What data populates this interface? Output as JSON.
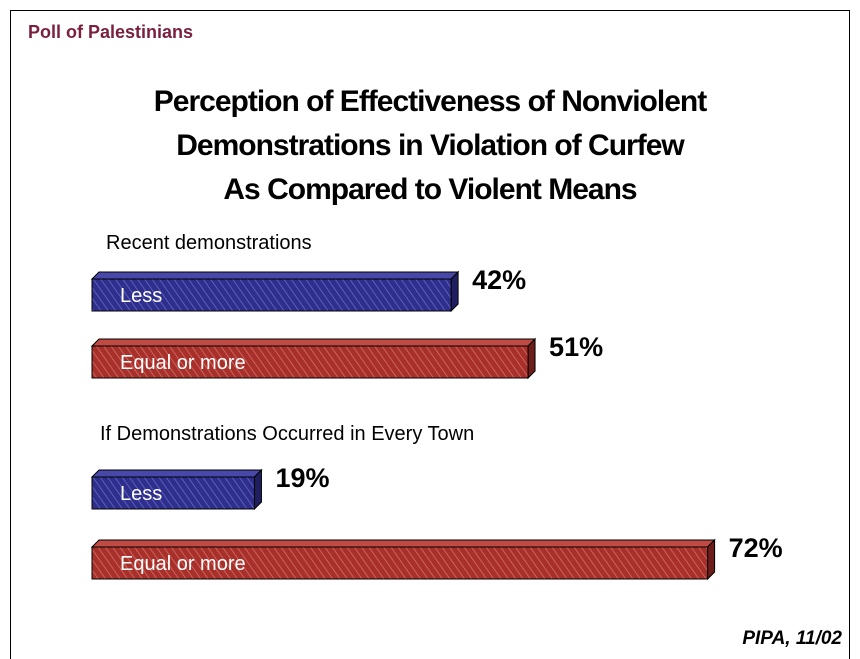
{
  "header": "Poll of Palestinians",
  "title_lines": [
    "Perception of Effectiveness of Nonviolent",
    "Demonstrations in Violation of Curfew",
    "As Compared to Violent Means"
  ],
  "source": "PIPA, 11/02",
  "colors": {
    "less": "#2e2e8c",
    "equal": "#a8302a",
    "header": "#7a1f3d"
  },
  "chart_data": {
    "type": "bar",
    "orientation": "horizontal",
    "groups": [
      {
        "label": "Recent demonstrations",
        "bars": [
          {
            "category": "Less",
            "value": 42,
            "value_label": "42%"
          },
          {
            "category": "Equal or more",
            "value": 51,
            "value_label": "51%"
          }
        ]
      },
      {
        "label": "If Demonstrations Occurred in Every Town",
        "bars": [
          {
            "category": "Less",
            "value": 19,
            "value_label": "19%"
          },
          {
            "category": "Equal or more",
            "value": 72,
            "value_label": "72%"
          }
        ]
      }
    ],
    "xlim": [
      0,
      100
    ]
  }
}
